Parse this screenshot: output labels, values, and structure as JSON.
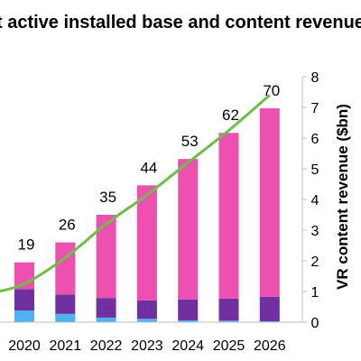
{
  "chart_data": {
    "type": "bar",
    "title": "t active installed base and content revenue",
    "categories": [
      "2020",
      "2021",
      "2022",
      "2023",
      "2024",
      "2025",
      "2026"
    ],
    "series": [
      {
        "type": "bar",
        "stack": "revenue",
        "axis": "right",
        "color": "#4db3f0",
        "values": [
          0.38,
          0.27,
          0.15,
          0.11,
          0.06,
          0.05,
          0.03
        ]
      },
      {
        "type": "bar",
        "stack": "revenue",
        "axis": "right",
        "color": "#7030a0",
        "values": [
          0.7,
          0.63,
          0.64,
          0.6,
          0.68,
          0.72,
          0.8
        ]
      },
      {
        "type": "bar",
        "stack": "revenue",
        "axis": "right",
        "color": "#ee50b0",
        "values": [
          0.87,
          1.7,
          2.71,
          3.75,
          4.58,
          5.4,
          6.14
        ]
      },
      {
        "type": "line",
        "axis": "right",
        "color": "#6cbf45",
        "values": [
          1.25,
          2.1,
          3.2,
          4.15,
          5.2,
          6.25,
          7.4
        ],
        "labels": [
          "19",
          "26",
          "35",
          "44",
          "53",
          "62",
          "70"
        ]
      }
    ],
    "y_right": {
      "label": "VR content revenue ($bn)",
      "ylim": [
        0,
        8
      ],
      "ticks": [
        "0",
        "1",
        "2",
        "3",
        "4",
        "5",
        "6",
        "7",
        "8"
      ]
    },
    "line_start_left": 0.95,
    "grid": false,
    "legend": "none"
  }
}
